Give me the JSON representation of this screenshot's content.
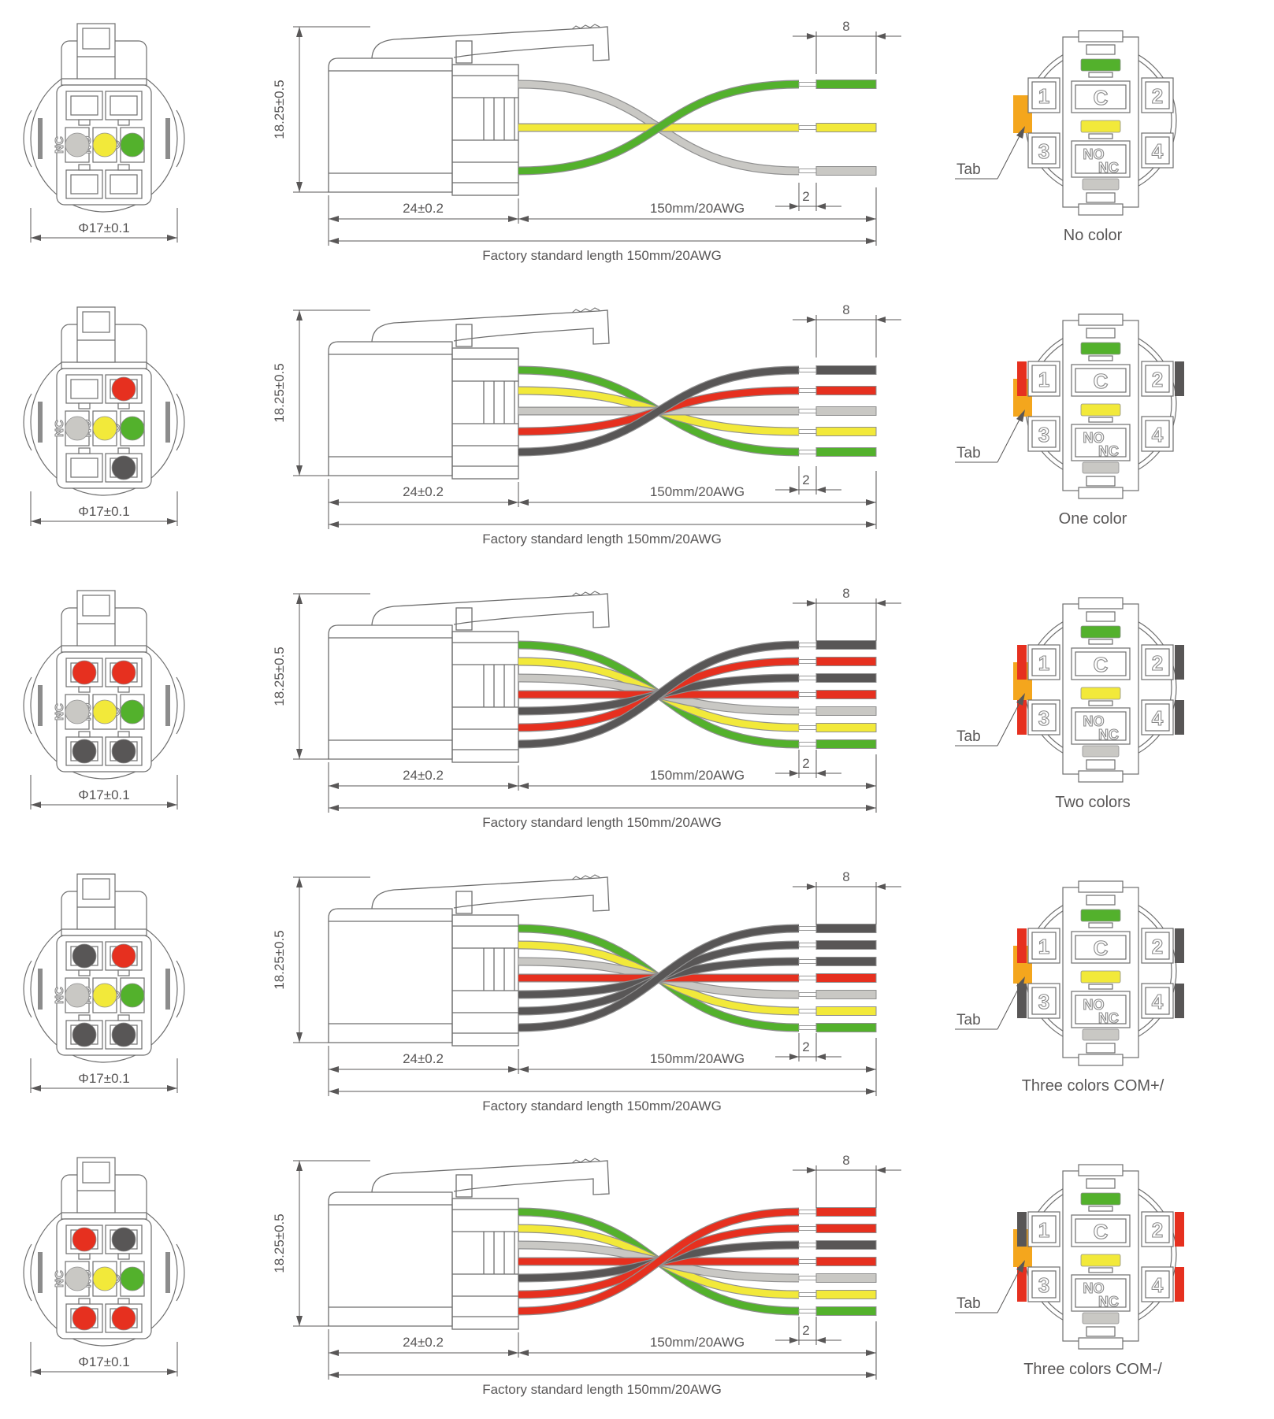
{
  "colors": {
    "green": "#53b12c",
    "yellow": "#f2e93a",
    "gray": "#c9c8c4",
    "red": "#e6301f",
    "dark": "#585656",
    "orange": "#f4a61d"
  },
  "dims": {
    "height": "18.25±0.5",
    "body_length": "24±0.2",
    "wire_length": "150mm/20AWG",
    "factory_note": "Factory standard length 150mm/20AWG",
    "tip_length": "8",
    "strip_gap": "2",
    "diameter": "Φ17±0.1",
    "tab_label": "Tab"
  },
  "front_labels": {
    "nc": "NC",
    "no": "NO",
    "c": "C"
  },
  "back_labels": {
    "pin1": "1",
    "pin2": "2",
    "pin3": "3",
    "pin4": "4",
    "c": "C",
    "no": "NO",
    "nc": "NC"
  },
  "rows": [
    {
      "caption": "No color",
      "front_dots": {
        "tl": null,
        "tr": null,
        "bl": null,
        "br": null
      },
      "wires": [
        "gray",
        "yellow",
        "green"
      ],
      "back_pins": {
        "p1": null,
        "p2": null,
        "p3": null,
        "p4": null
      }
    },
    {
      "caption": "One color",
      "front_dots": {
        "tl": null,
        "tr": "red",
        "bl": null,
        "br": "dark"
      },
      "wires": [
        "green",
        "yellow",
        "gray",
        "red",
        "dark"
      ],
      "back_pins": {
        "p1": "red",
        "p2": "dark",
        "p3": null,
        "p4": null
      }
    },
    {
      "caption": "Two colors",
      "front_dots": {
        "tl": "red",
        "tr": "red",
        "bl": "dark",
        "br": "dark"
      },
      "wires": [
        "green",
        "yellow",
        "gray",
        "red",
        "dark",
        "red",
        "dark"
      ],
      "back_pins": {
        "p1": "red",
        "p2": "dark",
        "p3": "red",
        "p4": "dark"
      }
    },
    {
      "caption": "Three colors COM+/",
      "front_dots": {
        "tl": "dark",
        "tr": "red",
        "bl": "dark",
        "br": "dark"
      },
      "wires": [
        "green",
        "yellow",
        "gray",
        "red",
        "dark",
        "dark",
        "dark"
      ],
      "back_pins": {
        "p1": "red",
        "p2": "dark",
        "p3": "dark",
        "p4": "dark"
      }
    },
    {
      "caption": "Three colors COM-/",
      "front_dots": {
        "tl": "red",
        "tr": "dark",
        "bl": "red",
        "br": "red"
      },
      "wires": [
        "green",
        "yellow",
        "gray",
        "red",
        "dark",
        "red",
        "red"
      ],
      "back_pins": {
        "p1": "dark",
        "p2": "red",
        "p3": "red",
        "p4": "red"
      }
    }
  ]
}
